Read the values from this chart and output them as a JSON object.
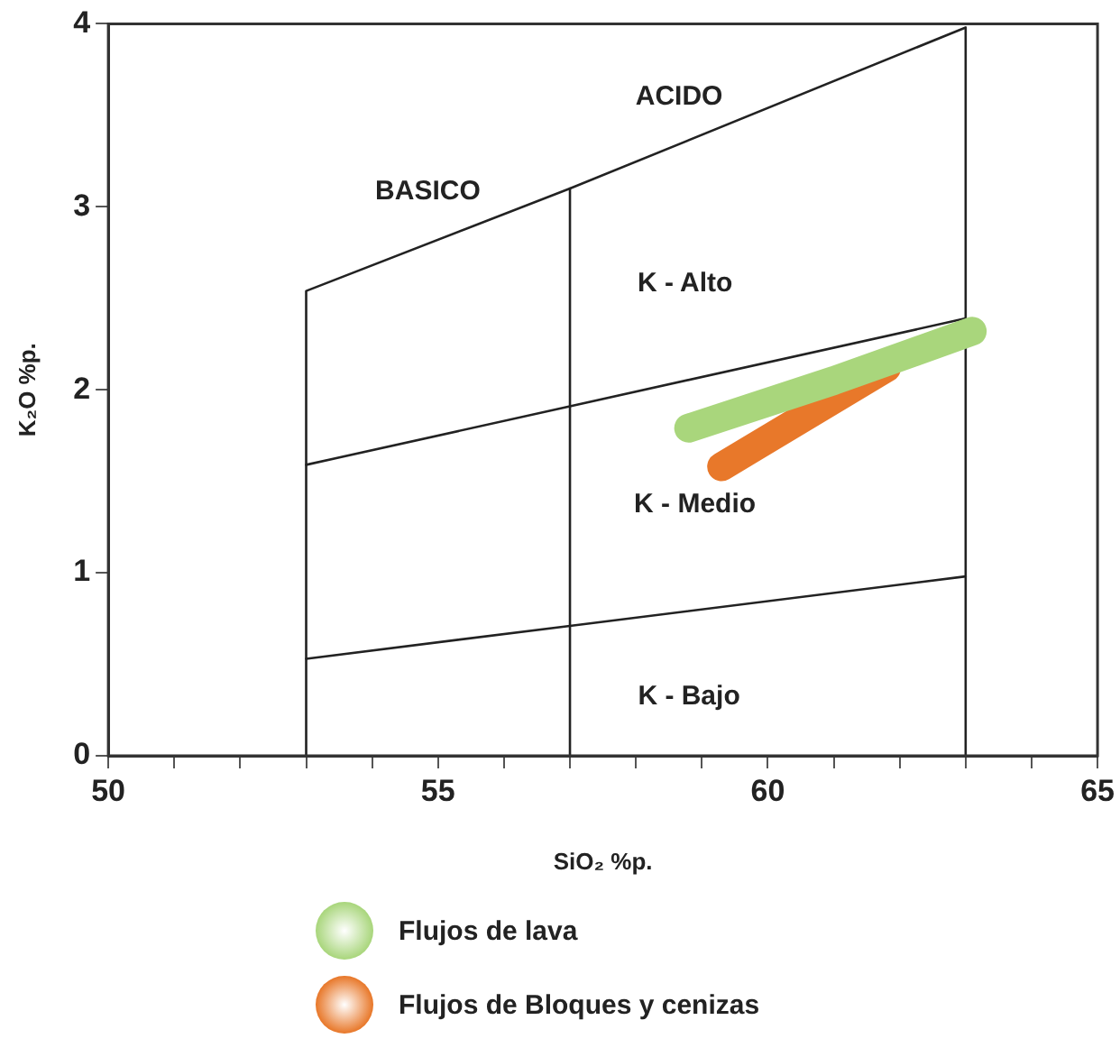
{
  "chart_data": {
    "type": "line",
    "xlabel": "SiO₂ %p.",
    "ylabel": "K₂O %p.",
    "xlim": [
      50,
      65
    ],
    "ylim": [
      0,
      4
    ],
    "xticks": [
      50,
      {
        "value": 51,
        "label": null
      },
      {
        "value": 52,
        "label": null
      },
      {
        "value": 53,
        "label": null
      },
      {
        "value": 54,
        "label": null
      },
      55,
      {
        "value": 56,
        "label": null
      },
      {
        "value": 57,
        "label": null
      },
      {
        "value": 58,
        "label": null
      },
      {
        "value": 59,
        "label": null
      },
      60,
      {
        "value": 61,
        "label": null
      },
      {
        "value": 62,
        "label": null
      },
      {
        "value": 63,
        "label": null
      },
      {
        "value": 64,
        "label": null
      },
      65
    ],
    "yticks": [
      0,
      1,
      2,
      3,
      4
    ],
    "grid": false,
    "legend": "bottom",
    "marker": "none",
    "line_style": "solid",
    "series": [
      {
        "color": "#222222",
        "x": [
          53,
          53,
          57,
          63,
          63
        ],
        "values": [
          0,
          2.54,
          3.1,
          3.98,
          0
        ]
      },
      {
        "color": "#222222",
        "x": [
          53,
          57,
          63
        ],
        "values": [
          1.59,
          1.91,
          2.39
        ]
      },
      {
        "color": "#222222",
        "x": [
          53,
          57,
          63
        ],
        "values": [
          0.53,
          0.71,
          0.98
        ]
      },
      {
        "color": "#222222",
        "x": [
          57,
          57
        ],
        "values": [
          3.1,
          0
        ]
      },
      {
        "name": "Flujos de lava",
        "color": "#a9d67c",
        "x": [
          58.8,
          61,
          63.1
        ],
        "values": [
          1.79,
          2.05,
          2.32
        ]
      },
      {
        "name": "Flujos de Bloques y cenizas",
        "color": "#e8782a",
        "x": [
          59.3,
          61.8
        ],
        "values": [
          1.58,
          2.12
        ]
      }
    ],
    "annotations": [
      "ACIDO",
      "BASICO",
      "K - Alto",
      "K - Medio",
      "K - Bajo"
    ]
  }
}
